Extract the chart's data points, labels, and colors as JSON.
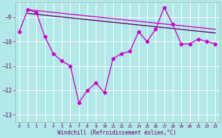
{
  "xlabel": "Windchill (Refroidissement éolien,°C)",
  "background_color": "#b2e8e8",
  "grid_color": "#ffffff",
  "line_color": "#cc00cc",
  "line_color2": "#660066",
  "x_hours": [
    0,
    1,
    2,
    3,
    4,
    5,
    6,
    7,
    8,
    9,
    10,
    11,
    12,
    13,
    14,
    15,
    16,
    17,
    18,
    19,
    20,
    21,
    22,
    23
  ],
  "y_main": [
    -9.6,
    -8.7,
    -8.8,
    -9.8,
    -10.5,
    -10.8,
    -11.0,
    -12.5,
    -12.0,
    -11.7,
    -12.1,
    -10.7,
    -10.5,
    -10.4,
    -9.6,
    -10.0,
    -9.5,
    -8.6,
    -9.3,
    -10.1,
    -10.1,
    -9.9,
    -10.0,
    -10.1
  ],
  "trend_line1": [
    -8.7,
    -9.5
  ],
  "trend_line2": [
    -8.85,
    -9.65
  ],
  "trend_x": [
    1,
    23
  ],
  "ylim": [
    -13.3,
    -8.4
  ],
  "yticks": [
    -13,
    -12,
    -11,
    -10,
    -9
  ],
  "xticks": [
    0,
    1,
    2,
    3,
    4,
    5,
    6,
    7,
    8,
    9,
    10,
    11,
    12,
    13,
    14,
    15,
    16,
    17,
    18,
    19,
    20,
    21,
    22,
    23
  ],
  "figsize": [
    3.2,
    2.0
  ],
  "dpi": 100
}
